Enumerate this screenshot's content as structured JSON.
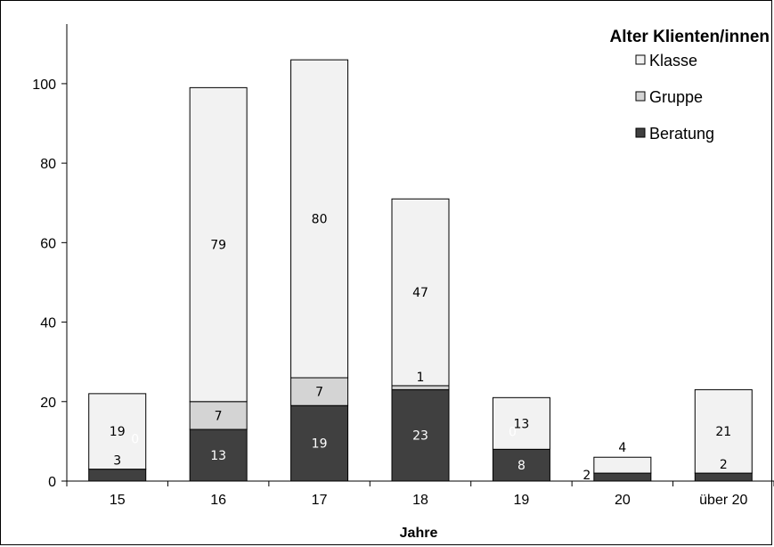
{
  "chart_data": {
    "type": "bar",
    "stacked": true,
    "title": "",
    "xlabel": "Jahre",
    "ylabel": "",
    "ylim": [
      0,
      115
    ],
    "yticks": [
      0,
      20,
      40,
      60,
      80,
      100
    ],
    "grid": false,
    "legend": {
      "title": "Alter Klienten/innen",
      "placement": "top-right",
      "order": [
        "Klasse",
        "Gruppe",
        "Beratung"
      ]
    },
    "categories": [
      "15",
      "16",
      "17",
      "18",
      "19",
      "20",
      "über 20"
    ],
    "series": [
      {
        "name": "Beratung",
        "color": "#404040",
        "values": [
          3,
          13,
          19,
          23,
          8,
          2,
          2
        ],
        "labels": [
          "3",
          "13",
          "19",
          "23",
          "8",
          "2",
          "2"
        ],
        "label_colors": [
          "#000000",
          "#ffffff",
          "#ffffff",
          "#ffffff",
          "#ffffff",
          "#000000",
          "#000000"
        ]
      },
      {
        "name": "Gruppe",
        "color": "#d4d4d4",
        "values": [
          0,
          7,
          7,
          1,
          0,
          0,
          0
        ],
        "labels": [
          "0",
          "7",
          "7",
          "1",
          "0",
          "",
          ""
        ],
        "label_colors": [
          "#ffffff",
          "#000000",
          "#000000",
          "#000000",
          "#ffffff",
          "#000000",
          "#000000"
        ]
      },
      {
        "name": "Klasse",
        "color": "#f2f2f2",
        "values": [
          19,
          79,
          80,
          47,
          13,
          4,
          21
        ],
        "labels": [
          "19",
          "79",
          "80",
          "47",
          "13",
          "4",
          "21"
        ],
        "label_colors": [
          "#000000",
          "#000000",
          "#000000",
          "#000000",
          "#000000",
          "#000000",
          "#000000"
        ]
      }
    ]
  }
}
